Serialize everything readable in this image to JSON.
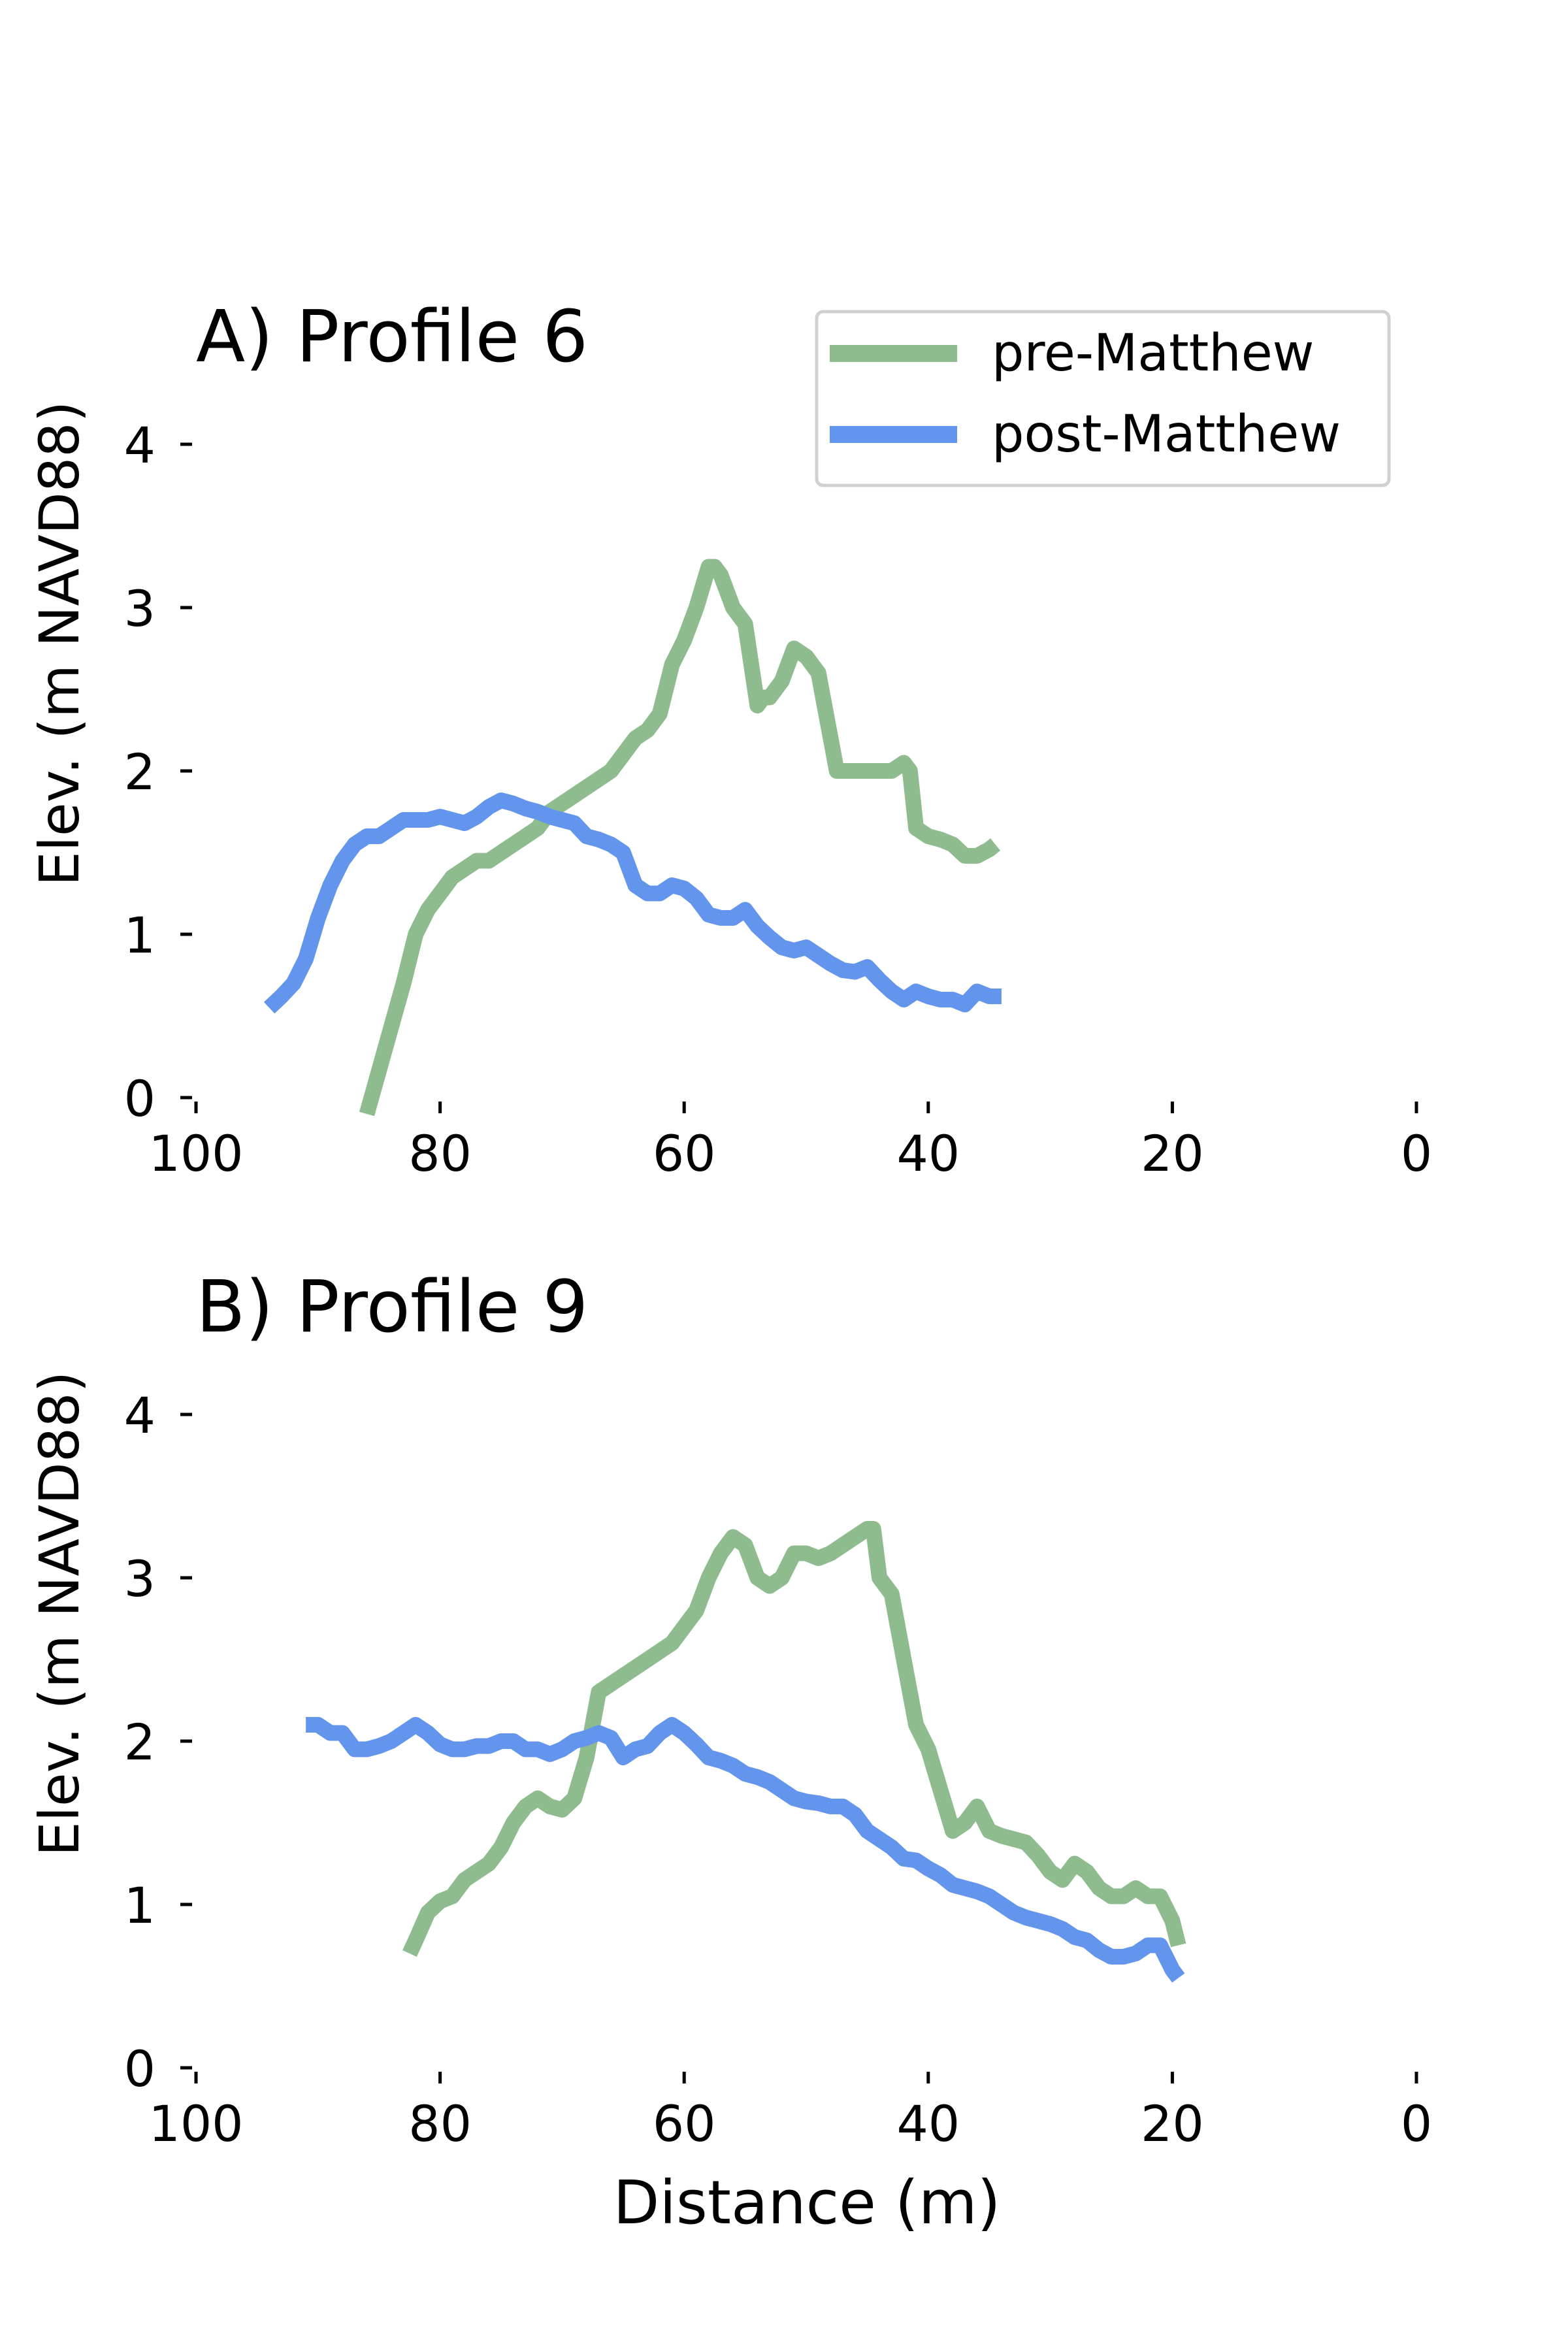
{
  "colors": {
    "pre": "#8fbc8f",
    "post": "#6495ed"
  },
  "legend": {
    "placement": "upper-right of panel A",
    "entries": [
      {
        "label": "pre-Matthew",
        "color": "#8fbc8f"
      },
      {
        "label": "post-Matthew",
        "color": "#6495ed"
      }
    ]
  },
  "chart_data": [
    {
      "type": "line",
      "title": "A) Profile 6",
      "xlabel": "",
      "ylabel": "Elev. (m NAVD88)",
      "xlim": [
        100,
        0
      ],
      "ylim": [
        0,
        4
      ],
      "xticks": [
        "100",
        "80",
        "60",
        "40",
        "20",
        "0"
      ],
      "yticks": [
        "0",
        "1",
        "2",
        "3",
        "4"
      ],
      "grid": false,
      "series": [
        {
          "name": "pre-Matthew",
          "color": "#8fbc8f",
          "x": [
            86,
            84.5,
            83,
            82,
            81,
            80,
            79,
            78,
            77,
            76,
            75,
            74,
            73,
            72,
            71,
            70,
            69,
            68,
            67,
            66,
            65,
            64,
            63,
            62,
            61.5,
            61,
            60,
            59,
            58,
            57.5,
            57,
            56.5,
            56,
            55,
            54,
            53.5,
            53,
            52,
            51,
            50,
            49,
            48,
            47.5,
            47,
            46.5,
            46,
            45,
            44,
            43,
            42,
            41.5,
            41,
            40,
            39,
            38,
            37,
            36,
            35,
            34.5
          ],
          "y": [
            -0.1,
            0.3,
            0.7,
            1.0,
            1.15,
            1.25,
            1.35,
            1.4,
            1.45,
            1.45,
            1.5,
            1.55,
            1.6,
            1.65,
            1.75,
            1.8,
            1.85,
            1.9,
            1.95,
            2.0,
            2.1,
            2.2,
            2.25,
            2.35,
            2.5,
            2.65,
            2.8,
            3.0,
            3.25,
            3.25,
            3.2,
            3.1,
            3.0,
            2.9,
            2.4,
            2.45,
            2.45,
            2.55,
            2.75,
            2.7,
            2.6,
            2.2,
            2.0,
            2.0,
            2.0,
            2.0,
            2.0,
            2.0,
            2.0,
            2.05,
            2.0,
            1.65,
            1.6,
            1.58,
            1.55,
            1.48,
            1.48,
            1.52,
            1.55
          ]
        },
        {
          "name": "post-Matthew",
          "color": "#6495ed",
          "x": [
            94,
            93,
            92,
            91,
            90,
            89,
            88,
            87,
            86,
            85,
            84,
            83,
            82,
            81,
            80,
            79,
            78,
            77,
            76,
            75,
            74,
            73,
            72,
            71,
            70,
            69,
            68,
            67,
            66,
            65,
            64,
            63,
            62,
            61,
            60,
            59,
            58,
            57,
            56,
            55,
            54,
            53,
            52,
            51,
            50,
            49,
            48,
            47,
            46,
            45,
            44,
            43,
            42,
            41,
            40,
            39,
            38,
            37,
            36,
            35,
            34
          ],
          "y": [
            0.55,
            0.62,
            0.7,
            0.85,
            1.1,
            1.3,
            1.45,
            1.55,
            1.6,
            1.6,
            1.65,
            1.7,
            1.7,
            1.7,
            1.72,
            1.7,
            1.68,
            1.72,
            1.78,
            1.82,
            1.8,
            1.77,
            1.75,
            1.72,
            1.7,
            1.68,
            1.6,
            1.58,
            1.55,
            1.5,
            1.3,
            1.25,
            1.25,
            1.3,
            1.28,
            1.22,
            1.12,
            1.1,
            1.1,
            1.15,
            1.05,
            0.98,
            0.92,
            0.9,
            0.92,
            0.87,
            0.82,
            0.78,
            0.77,
            0.8,
            0.72,
            0.65,
            0.6,
            0.65,
            0.62,
            0.6,
            0.6,
            0.57,
            0.65,
            0.62,
            0.62
          ]
        }
      ]
    },
    {
      "type": "line",
      "title": "B) Profile 9",
      "xlabel": "Distance (m)",
      "ylabel": "Elev. (m NAVD88)",
      "xlim": [
        100,
        0
      ],
      "ylim": [
        0,
        4
      ],
      "xticks": [
        "100",
        "80",
        "60",
        "40",
        "20",
        "0"
      ],
      "yticks": [
        "0",
        "1",
        "2",
        "3",
        "4"
      ],
      "grid": false,
      "series": [
        {
          "name": "pre-Matthew",
          "color": "#8fbc8f",
          "x": [
            82.5,
            82,
            81,
            80,
            79,
            78,
            77,
            76,
            75,
            74,
            73,
            72,
            71,
            70,
            69,
            68,
            67,
            66,
            65,
            64,
            63,
            62,
            61,
            60,
            59,
            58,
            57,
            56,
            55,
            54,
            53,
            52,
            51,
            50,
            49,
            48,
            47,
            46,
            45,
            44.5,
            44,
            43,
            42,
            41,
            40,
            39,
            38,
            37,
            36,
            35,
            34,
            33,
            32,
            31,
            30,
            29,
            28,
            27,
            26,
            25,
            24,
            23,
            22,
            21,
            20,
            19.5
          ],
          "y": [
            0.7,
            0.78,
            0.95,
            1.02,
            1.05,
            1.15,
            1.2,
            1.25,
            1.35,
            1.5,
            1.6,
            1.65,
            1.6,
            1.58,
            1.65,
            1.9,
            2.3,
            2.35,
            2.4,
            2.45,
            2.5,
            2.55,
            2.6,
            2.7,
            2.8,
            3.0,
            3.15,
            3.25,
            3.2,
            3.0,
            2.95,
            3.0,
            3.15,
            3.15,
            3.12,
            3.15,
            3.2,
            3.25,
            3.3,
            3.3,
            3.0,
            2.9,
            2.5,
            2.1,
            1.95,
            1.7,
            1.45,
            1.5,
            1.6,
            1.45,
            1.42,
            1.4,
            1.38,
            1.3,
            1.2,
            1.15,
            1.25,
            1.2,
            1.1,
            1.05,
            1.05,
            1.1,
            1.05,
            1.05,
            0.9,
            0.75
          ]
        },
        {
          "name": "post-Matthew",
          "color": "#6495ed",
          "x": [
            91,
            90,
            89,
            88,
            87,
            86,
            85,
            84,
            83,
            82,
            81,
            80,
            79,
            78,
            77,
            76,
            75,
            74,
            73,
            72,
            71,
            70,
            69,
            68,
            67,
            66,
            65,
            64,
            63,
            62,
            61,
            60,
            59,
            58,
            57,
            56,
            55,
            54,
            53,
            52,
            51,
            50,
            49,
            48,
            47,
            46,
            45,
            44,
            43,
            42,
            41,
            40,
            39,
            38,
            37,
            36,
            35,
            34,
            33,
            32,
            31,
            30,
            29,
            28,
            27,
            26,
            25,
            24,
            23,
            22,
            21,
            20,
            19.5
          ],
          "y": [
            2.1,
            2.1,
            2.05,
            2.05,
            1.95,
            1.95,
            1.97,
            2.0,
            2.05,
            2.1,
            2.05,
            1.98,
            1.95,
            1.95,
            1.97,
            1.97,
            2.0,
            2.0,
            1.95,
            1.95,
            1.92,
            1.95,
            2.0,
            2.02,
            2.05,
            2.02,
            1.9,
            1.95,
            1.97,
            2.05,
            2.1,
            2.05,
            1.98,
            1.9,
            1.88,
            1.85,
            1.8,
            1.78,
            1.75,
            1.7,
            1.65,
            1.63,
            1.62,
            1.6,
            1.6,
            1.55,
            1.45,
            1.4,
            1.35,
            1.28,
            1.27,
            1.22,
            1.18,
            1.12,
            1.1,
            1.08,
            1.05,
            1.0,
            0.95,
            0.92,
            0.9,
            0.88,
            0.85,
            0.8,
            0.78,
            0.72,
            0.68,
            0.68,
            0.7,
            0.75,
            0.75,
            0.6,
            0.55
          ]
        }
      ]
    }
  ]
}
